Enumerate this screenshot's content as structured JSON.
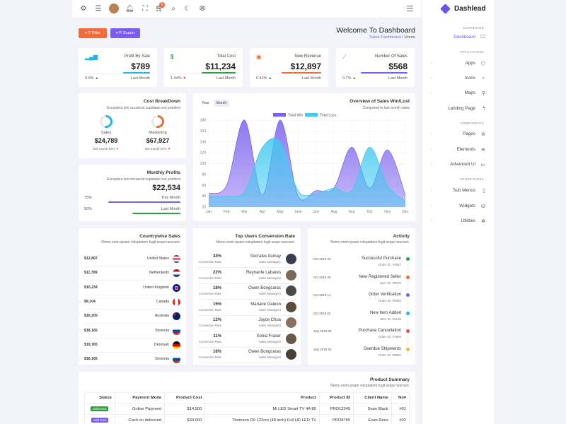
{
  "header": {
    "cart_count": "6",
    "icons": [
      "gear-icon",
      "list-icon",
      "avatar",
      "bell-icon",
      "fullscreen-icon",
      "cart-icon",
      "search-icon",
      "moon-icon",
      "globe-icon",
      "hamburger-icon"
    ]
  },
  "sidebar": {
    "logo": "Dashlead",
    "sections": {
      "dashboard": "DASHBOARD",
      "applications": "APPLICATIONS",
      "components": "COMPONENTS",
      "other": "OTHER PAGES"
    },
    "items": [
      {
        "label": "Dashboard",
        "icon": "monitor-icon"
      },
      {
        "label": "Apps",
        "icon": "box-icon"
      },
      {
        "label": "Icons",
        "icon": "bulb-icon"
      },
      {
        "label": "Maps",
        "icon": "pin-icon"
      },
      {
        "label": "Landing Page",
        "icon": "bolt-icon"
      },
      {
        "label": "Pages",
        "icon": "compass-icon"
      },
      {
        "label": "Elements",
        "icon": "layers-icon"
      },
      {
        "label": "Advanced Ui",
        "icon": "folder-icon"
      },
      {
        "label": "Sub Menus",
        "icon": "book-icon"
      },
      {
        "label": "Widgets",
        "icon": "database-icon"
      },
      {
        "label": "Utilities",
        "icon": "settings-icon"
      }
    ]
  },
  "toolbar": {
    "filter_label": "Filter",
    "export_label": "Export"
  },
  "page": {
    "title": "Welcome To Dashboard",
    "breadcrumb_parent": "Sales Dashboard",
    "breadcrumb_sep": "/",
    "breadcrumb_current": "Home"
  },
  "stats": [
    {
      "title": "Profit By Sale",
      "value": "$789",
      "pct": "0.9%",
      "period": "Last Month",
      "color": "#23b5e8"
    },
    {
      "title": "Total Cost",
      "value": "$11,234",
      "pct": "1.44%",
      "period": "Last Month",
      "color": "#2ea03d"
    },
    {
      "title": "New Revenue",
      "value": "$12,897",
      "pct": "0.43%",
      "period": "Last Month",
      "color": "#ee6b34"
    },
    {
      "title": "Number Of Sales",
      "value": "$568",
      "pct": "0.7%",
      "period": "Last Month",
      "color": "#7a5cf0"
    }
  ],
  "cost_breakdown": {
    "title": "Cost BreakDown",
    "subtitle": "Excepteur sint occaecat cupidatat non proident",
    "sales": {
      "label": "Sales",
      "value": "$24,789",
      "sub": "last month 53%"
    },
    "marketing": {
      "label": "Marketing",
      "value": "$67,927",
      "sub": "last month 54%"
    }
  },
  "monthly_profits": {
    "title": "Monthly Profits",
    "subtitle": "Excepteur sint occaecat cupidatat non proident",
    "value": "$22,534",
    "rows": [
      {
        "pct": "75%",
        "label": "This Month",
        "fraction": 0.75,
        "color": "#7a5cf0"
      },
      {
        "pct": "50%",
        "label": "Last Month",
        "fraction": 0.5,
        "color": "#2ea03d"
      }
    ]
  },
  "sales_chart": {
    "title": "Overview of Sales Win/Lost",
    "subtitle": "Compared to last month sales",
    "tabs": [
      "Year",
      "Month"
    ]
  },
  "chart_data": {
    "type": "area",
    "categories": [
      "Jan",
      "Feb",
      "Mar",
      "Apr",
      "May",
      "June",
      "July",
      "Aug",
      "Sep",
      "Oct",
      "Nov",
      "Dec"
    ],
    "yticks": [
      20,
      40,
      60,
      80,
      100,
      120,
      140,
      160,
      180
    ],
    "ylim": [
      20,
      180
    ],
    "series": [
      {
        "name": "Total Win",
        "values": [
          45,
          60,
          180,
          42,
          180,
          40,
          50,
          55,
          130,
          55,
          125,
          42
        ],
        "color": "#7b61ef"
      },
      {
        "name": "Total Loss",
        "values": [
          40,
          40,
          48,
          130,
          140,
          50,
          45,
          55,
          50,
          130,
          60,
          30
        ],
        "color": "#42c9f0"
      }
    ]
  },
  "countries": {
    "title": "Countrywise Sales",
    "subtitle": "Nemo enim ipsam voluptatem fugit sequi nesciunt.",
    "rows": [
      {
        "value": "$12,897",
        "name": "United States",
        "flag": "us-flag-icon"
      },
      {
        "value": "$11,789",
        "name": "Netherlands",
        "flag": "nl-flag-icon"
      },
      {
        "value": "$10,234",
        "name": "United Kingdom",
        "flag": "uk-flag-icon"
      },
      {
        "value": "$9,104",
        "name": "Canada",
        "flag": "ca-flag-icon"
      },
      {
        "value": "$16,205",
        "name": "Australia",
        "flag": "au-flag-icon"
      },
      {
        "value": "$18,165",
        "name": "Slovenia",
        "flag": "si-flag-icon"
      },
      {
        "value": "$19,765",
        "name": "Denmark",
        "flag": "de-flag-icon"
      },
      {
        "value": "$18,165",
        "name": "Slovenia",
        "flag": "si-flag-icon"
      }
    ]
  },
  "users": {
    "title": "Top Users Conversion Rate",
    "subtitle": "Nemo enim ipsam voluptatem fugit sequi nesciunt.",
    "rate_label": "Conversion Rate",
    "rows": [
      {
        "pct": "34%",
        "name": "Socrates Itumay",
        "role": "Sales Manager1"
      },
      {
        "pct": "22%",
        "name": "Reynante Labares",
        "role": "Sales Manager2"
      },
      {
        "pct": "18%",
        "name": "Owen Bongcaras",
        "role": "Sales Manager3"
      },
      {
        "pct": "15%",
        "name": "Mariane Galeon",
        "role": "Sales Manager4"
      },
      {
        "pct": "12%",
        "name": "Joyce Chua",
        "role": "Sales Manager5"
      },
      {
        "pct": "11%",
        "name": "Sonia Fraser",
        "role": "Sales Manager5"
      },
      {
        "pct": "18%",
        "name": "Owen Bongcaras",
        "role": "Sales Manager6"
      }
    ]
  },
  "activity": {
    "title": "Activity",
    "subtitle": "Nemo enim ipsam voluptatem fugit sequi nesciunt.",
    "rows": [
      {
        "date": "Oct 2019 29",
        "title": "Successful Purchase",
        "sub": "Order ID: #4567",
        "color": "#2ea03d"
      },
      {
        "date": "Oct 2019 25",
        "title": "New Registered Seller",
        "sub": "User ID: #8976",
        "color": "#ee6b34"
      },
      {
        "date": "Oct 2019 14",
        "title": "Order Verification",
        "sub": "Order ID: #6290",
        "color": "#7a5cf0"
      },
      {
        "date": "Oct 2019 02",
        "title": "New Item Added",
        "sub": "Item ID: #0235",
        "color": "#23b5e8"
      },
      {
        "date": "Sep 2019 28",
        "title": "Purchase Cancellation",
        "sub": "Order ID: #1905",
        "color": "#f04b4b"
      },
      {
        "date": "Sep 2019 25",
        "title": "Overdue Shipments",
        "sub": "Order ID: #8902",
        "color": "#f5b82e"
      }
    ]
  },
  "products": {
    "title": "Product Summary",
    "subtitle": "Nemo enim ipsam voluptatem fugit sequi nesciunt.",
    "headers": [
      "Status",
      "Payment Mode",
      "Product Cost",
      "Product",
      "Product ID",
      "Client Name",
      "No#"
    ],
    "rows": [
      {
        "status": "Delivered",
        "status_color": "#2ea03d",
        "payment": "Online Payment",
        "cost": "$14,500",
        "product": "Mi LED Smart TV 4A 80",
        "id": "PRO12345",
        "client": "Sean Black",
        "no": "#01"
      },
      {
        "status": "Add Cart",
        "status_color": "#7a5cf0",
        "payment": "Cash on delivered",
        "cost": "$30,000",
        "product": "Thomson R9 122cm (48 inch) Full HD LED TV",
        "id": "PRO8765",
        "client": "Evan Rees",
        "no": "#02"
      }
    ]
  }
}
